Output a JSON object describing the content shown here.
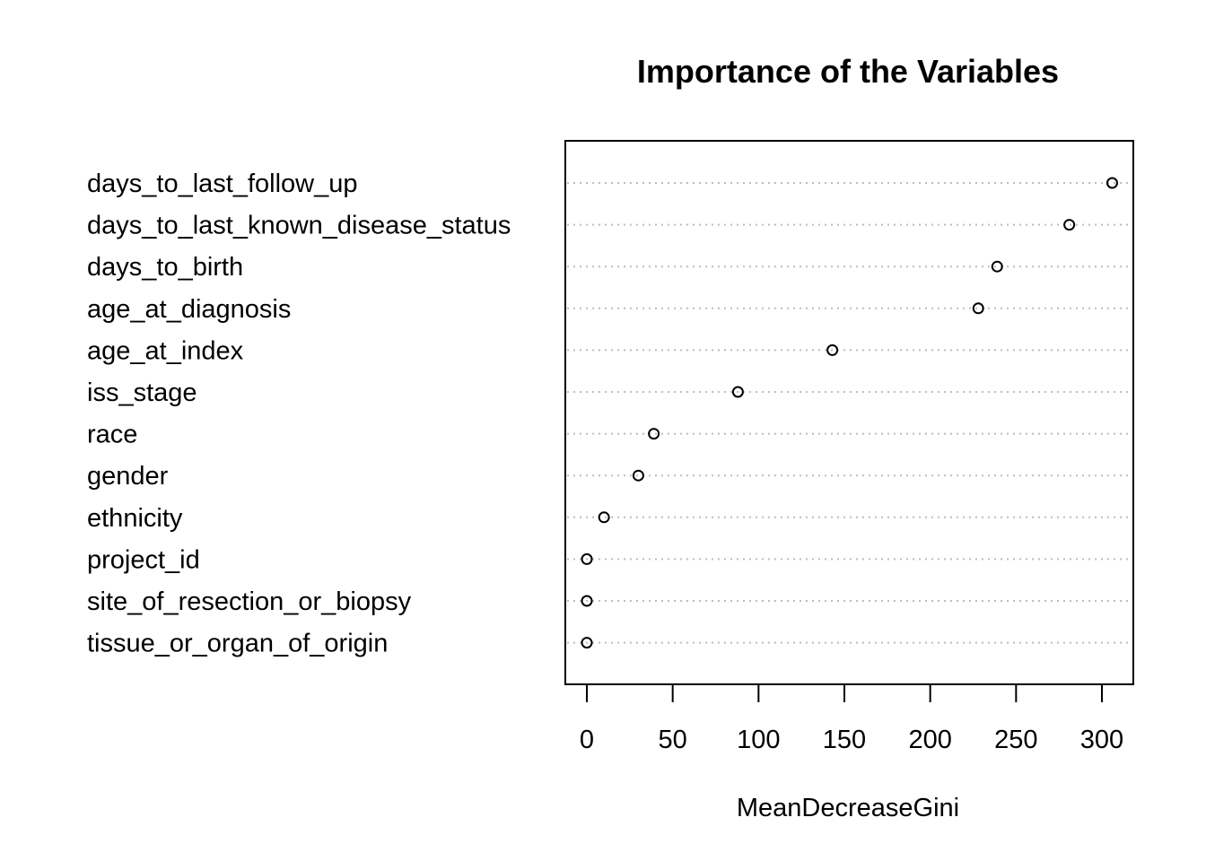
{
  "chart_data": {
    "type": "scatter",
    "title": "Importance of the Variables",
    "xlabel": "MeanDecreaseGini",
    "ylabel": "",
    "xlim": [
      -12.5,
      318.5
    ],
    "xticks": [
      0,
      50,
      100,
      150,
      200,
      250,
      300
    ],
    "grid": "horizontal dotted lines per variable",
    "legend": "none",
    "categories": [
      "days_to_last_follow_up",
      "days_to_last_known_disease_status",
      "days_to_birth",
      "age_at_diagnosis",
      "age_at_index",
      "iss_stage",
      "race",
      "gender",
      "ethnicity",
      "project_id",
      "site_of_resection_or_biopsy",
      "tissue_or_organ_of_origin"
    ],
    "values": [
      306,
      281,
      239,
      228,
      143,
      88,
      39,
      30,
      10,
      0,
      0,
      0
    ]
  }
}
